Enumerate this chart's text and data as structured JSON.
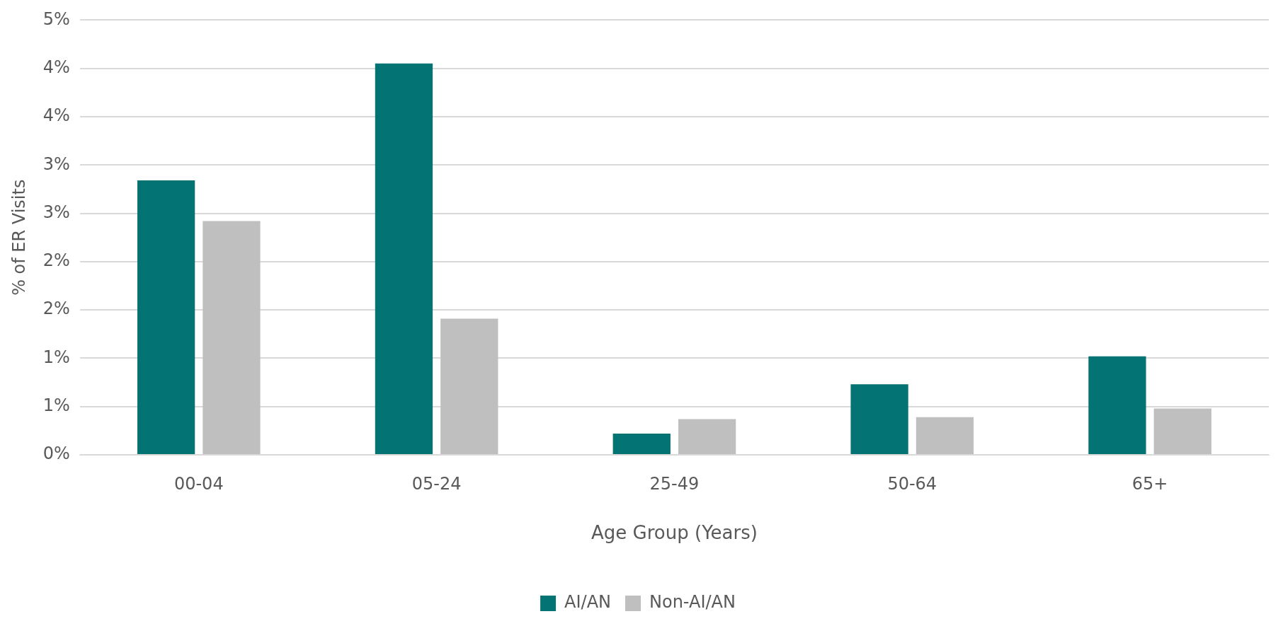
{
  "chart_data": {
    "type": "bar",
    "xlabel": "Age Group (Years)",
    "ylabel": "% of ER Visits",
    "categories": [
      "00-04",
      "05-24",
      "25-49",
      "50-64",
      "65+"
    ],
    "series": [
      {
        "name": "AI/AN",
        "color": "#037373",
        "values": [
          2.84,
          4.05,
          0.22,
          0.73,
          1.02
        ]
      },
      {
        "name": "Non-AI/AN",
        "color": "#bfbfbf",
        "values": [
          2.42,
          1.41,
          0.37,
          0.39,
          0.48
        ]
      }
    ],
    "ylim": [
      0,
      4.5
    ],
    "yticks": [
      {
        "value": 0,
        "label": "0%"
      },
      {
        "value": 0.5,
        "label": "1%"
      },
      {
        "value": 1,
        "label": "1%"
      },
      {
        "value": 1.5,
        "label": "2%"
      },
      {
        "value": 2,
        "label": "2%"
      },
      {
        "value": 2.5,
        "label": "3%"
      },
      {
        "value": 3,
        "label": "3%"
      },
      {
        "value": 3.5,
        "label": "4%"
      },
      {
        "value": 4,
        "label": "4%"
      },
      {
        "value": 4.5,
        "label": "5%"
      }
    ],
    "grid": "y",
    "legend": "bottom"
  }
}
